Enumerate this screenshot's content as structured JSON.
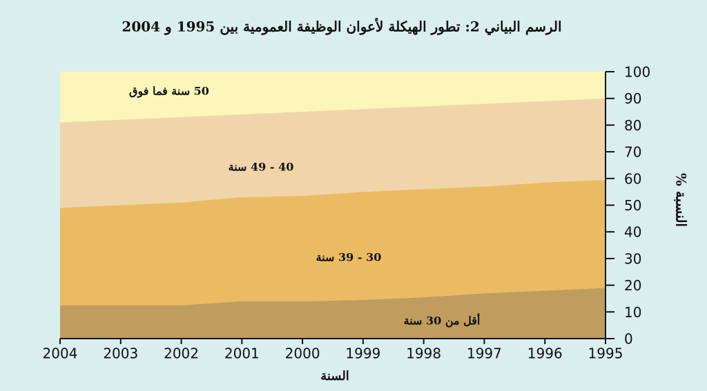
{
  "chart_data": {
    "type": "stacked_area",
    "title": "الرسم البياني 2: تطور الهيكلة لأعوان الوظيفة العمومية بين 1995 و 2004",
    "x_label": "السنة",
    "y_label": "النسبة %",
    "x": [
      1995,
      1996,
      1997,
      1998,
      1999,
      2000,
      2001,
      2002,
      2003,
      2004
    ],
    "xlim": [
      2004,
      1995
    ],
    "xticks": [
      2004,
      2003,
      2002,
      2001,
      2000,
      1999,
      1998,
      1997,
      1996,
      1995
    ],
    "ylim": [
      0,
      100
    ],
    "yticks": [
      0,
      10,
      20,
      30,
      40,
      50,
      60,
      70,
      80,
      90,
      100
    ],
    "series": [
      {
        "name": "أقل من 30 سنة",
        "color": "#bf9d5e",
        "values": [
          19,
          18,
          17,
          15.5,
          14.5,
          14,
          14,
          12.5,
          12.5,
          12.5
        ]
      },
      {
        "name": "30 - 39 سنة",
        "color": "#ebbb63",
        "values": [
          40.5,
          40.5,
          40,
          40.5,
          40.5,
          39.5,
          39,
          38.5,
          37.5,
          36.5
        ]
      },
      {
        "name": "40 - 49 سنة",
        "color": "#f1d5aa",
        "values": [
          30.5,
          30.5,
          31,
          31,
          31,
          31.5,
          31,
          32,
          32,
          32
        ]
      },
      {
        "name": "50 سنة فما فوق",
        "color": "#fdf6ba",
        "values": [
          10,
          11,
          12,
          13,
          14,
          15,
          16,
          17,
          18,
          19
        ]
      }
    ]
  }
}
